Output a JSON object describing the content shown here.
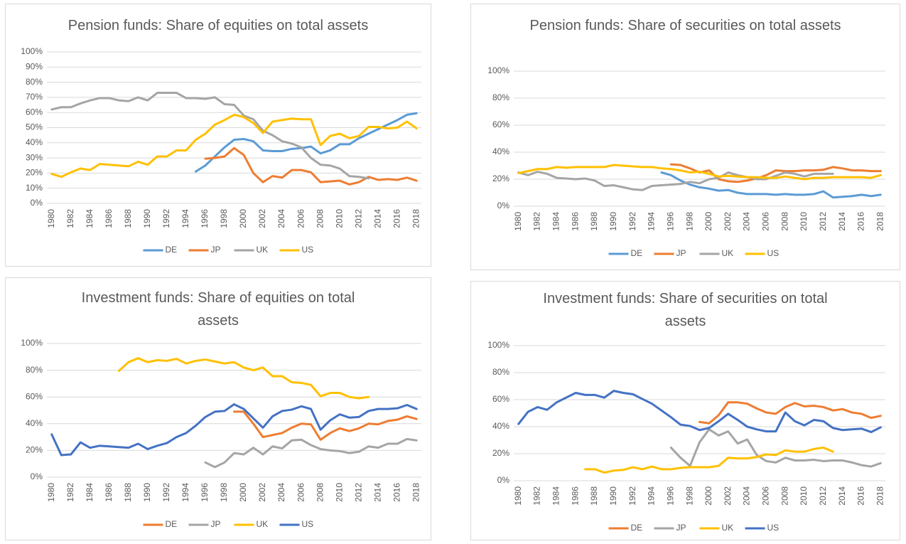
{
  "chart_data": [
    {
      "type": "line",
      "title": "Pension funds: Share of equities on total assets",
      "x": [
        1980,
        1981,
        1982,
        1983,
        1984,
        1985,
        1986,
        1987,
        1988,
        1989,
        1990,
        1991,
        1992,
        1993,
        1994,
        1995,
        1996,
        1997,
        1998,
        1999,
        2000,
        2001,
        2002,
        2003,
        2004,
        2005,
        2006,
        2007,
        2008,
        2009,
        2010,
        2011,
        2012,
        2013,
        2014,
        2015,
        2016,
        2017,
        2018
      ],
      "xlim": [
        1979.5,
        2018.5
      ],
      "xticks": [
        1980,
        1982,
        1984,
        1986,
        1988,
        1990,
        1992,
        1994,
        1996,
        1998,
        2000,
        2002,
        2004,
        2006,
        2008,
        2010,
        2012,
        2014,
        2016,
        2018
      ],
      "ylim": [
        0,
        100
      ],
      "yticks": [
        {
          "value": 0,
          "label": "0%"
        },
        {
          "value": 10,
          "label": "10%"
        },
        {
          "value": 20,
          "label": "20%"
        },
        {
          "value": 30,
          "label": "30%"
        },
        {
          "value": 40,
          "label": "40%"
        },
        {
          "value": 50,
          "label": "50%"
        },
        {
          "value": 60,
          "label": "60%"
        },
        {
          "value": 70,
          "label": "70%"
        },
        {
          "value": 80,
          "label": "80%"
        },
        {
          "value": 90,
          "label": "90%"
        },
        {
          "value": 100,
          "label": "100%"
        }
      ],
      "grid": true,
      "legend": "bottom",
      "series": [
        {
          "name": "DE",
          "color": "#5b9bd5",
          "values": [
            null,
            null,
            null,
            null,
            null,
            null,
            null,
            null,
            null,
            null,
            null,
            null,
            null,
            null,
            null,
            21,
            25,
            31,
            37,
            42,
            42.5,
            41,
            35,
            34.5,
            34.5,
            36,
            36.5,
            37.5,
            33,
            35,
            39,
            39,
            43,
            46,
            49,
            52,
            55,
            58.5,
            59.5
          ]
        },
        {
          "name": "JP",
          "color": "#ed7d31",
          "values": [
            null,
            null,
            null,
            null,
            null,
            null,
            null,
            null,
            null,
            null,
            null,
            null,
            null,
            null,
            null,
            null,
            29.5,
            30,
            31,
            36.5,
            32,
            20,
            14,
            18,
            17,
            22,
            22,
            20.5,
            14,
            14.5,
            15,
            12.5,
            14,
            17.5,
            15.5,
            16,
            15.5,
            17,
            15
          ]
        },
        {
          "name": "UK",
          "color": "#a5a5a5",
          "values": [
            62,
            63.5,
            63.5,
            66,
            68,
            69.5,
            69.5,
            68,
            67.5,
            70,
            68,
            73,
            73,
            73,
            69.5,
            69.5,
            69,
            70,
            65.5,
            65,
            58,
            55.5,
            48,
            45,
            41,
            39.5,
            37,
            30,
            25.5,
            25,
            23,
            18,
            17.5,
            16.5,
            null,
            null,
            null,
            null,
            null
          ]
        },
        {
          "name": "US",
          "color": "#ffc000",
          "values": [
            19.5,
            17.5,
            20.5,
            23,
            22,
            26,
            25.5,
            25,
            24.5,
            27.5,
            25.5,
            31,
            31,
            35,
            35,
            42,
            46,
            52,
            55,
            58.5,
            57,
            53,
            46.5,
            54,
            55,
            56,
            55.5,
            55.5,
            38.5,
            44.5,
            46,
            43,
            44.5,
            50.5,
            50.5,
            49.5,
            50,
            54,
            49.5
          ]
        }
      ]
    },
    {
      "type": "line",
      "title": "Pension funds: Share of securities on total assets",
      "x": [
        1980,
        1981,
        1982,
        1983,
        1984,
        1985,
        1986,
        1987,
        1988,
        1989,
        1990,
        1991,
        1992,
        1993,
        1994,
        1995,
        1996,
        1997,
        1998,
        1999,
        2000,
        2001,
        2002,
        2003,
        2004,
        2005,
        2006,
        2007,
        2008,
        2009,
        2010,
        2011,
        2012,
        2013,
        2014,
        2015,
        2016,
        2017,
        2018
      ],
      "xlim": [
        1979.5,
        2018.5
      ],
      "xticks": [
        1980,
        1982,
        1984,
        1986,
        1988,
        1990,
        1992,
        1994,
        1996,
        1998,
        2000,
        2002,
        2004,
        2006,
        2008,
        2010,
        2012,
        2014,
        2016,
        2018
      ],
      "ylim": [
        0,
        100
      ],
      "yticks": [
        {
          "value": 0,
          "label": "0%"
        },
        {
          "value": 20,
          "label": "20%"
        },
        {
          "value": 40,
          "label": "40%"
        },
        {
          "value": 60,
          "label": "60%"
        },
        {
          "value": 80,
          "label": "80%"
        },
        {
          "value": 100,
          "label": "100%"
        }
      ],
      "grid": true,
      "legend": "bottom",
      "series": [
        {
          "name": "DE",
          "color": "#5b9bd5",
          "values": [
            null,
            null,
            null,
            null,
            null,
            null,
            null,
            null,
            null,
            null,
            null,
            null,
            null,
            null,
            null,
            25,
            23,
            19,
            16,
            14,
            13,
            11.5,
            12,
            10,
            9,
            9,
            9,
            8.5,
            9,
            8.5,
            8.5,
            9,
            11,
            6.5,
            7,
            7.5,
            8.5,
            7.5,
            8.5
          ]
        },
        {
          "name": "JP",
          "color": "#ed7d31",
          "values": [
            null,
            null,
            null,
            null,
            null,
            null,
            null,
            null,
            null,
            null,
            null,
            null,
            null,
            null,
            null,
            null,
            31,
            30.5,
            28,
            25,
            26.5,
            20,
            18.5,
            18,
            19,
            20.5,
            23,
            26.5,
            26,
            26,
            26.5,
            26.5,
            27,
            29,
            28,
            26.5,
            26.5,
            26,
            26
          ]
        },
        {
          "name": "UK",
          "color": "#a5a5a5",
          "values": [
            25,
            23,
            25.5,
            24,
            21,
            20.5,
            20,
            20.5,
            19,
            15,
            15.5,
            14,
            12.5,
            12,
            15,
            15.5,
            16,
            16.5,
            18,
            17,
            20,
            21,
            25,
            23,
            21.5,
            20,
            20,
            22.5,
            25,
            24,
            22,
            24,
            24,
            24,
            null,
            null,
            null,
            null,
            null
          ]
        },
        {
          "name": "US",
          "color": "#ffc000",
          "values": [
            24.5,
            26,
            27.5,
            27.5,
            29,
            28.5,
            29,
            29,
            29,
            29,
            30.5,
            30,
            29.5,
            29,
            29,
            28,
            27.5,
            26.5,
            25,
            25.5,
            24,
            22,
            22.5,
            22,
            21.5,
            21.5,
            21,
            21,
            22,
            21,
            20,
            21,
            21,
            21.5,
            21.5,
            21.5,
            21.5,
            21,
            23
          ]
        }
      ]
    },
    {
      "type": "line",
      "title": "Investment funds: Share of equities on total assets",
      "x": [
        1980,
        1981,
        1982,
        1983,
        1984,
        1985,
        1986,
        1987,
        1988,
        1989,
        1990,
        1991,
        1992,
        1993,
        1994,
        1995,
        1996,
        1997,
        1998,
        1999,
        2000,
        2001,
        2002,
        2003,
        2004,
        2005,
        2006,
        2007,
        2008,
        2009,
        2010,
        2011,
        2012,
        2013,
        2014,
        2015,
        2016,
        2017,
        2018
      ],
      "xlim": [
        1979.5,
        2018.5
      ],
      "xticks": [
        1980,
        1982,
        1984,
        1986,
        1988,
        1990,
        1992,
        1994,
        1996,
        1998,
        2000,
        2002,
        2004,
        2006,
        2008,
        2010,
        2012,
        2014,
        2016,
        2018
      ],
      "ylim": [
        0,
        100
      ],
      "yticks": [
        {
          "value": 0,
          "label": "0%"
        },
        {
          "value": 20,
          "label": "20%"
        },
        {
          "value": 40,
          "label": "40%"
        },
        {
          "value": 60,
          "label": "60%"
        },
        {
          "value": 80,
          "label": "80%"
        },
        {
          "value": 100,
          "label": "100%"
        }
      ],
      "grid": true,
      "legend": "bottom",
      "series": [
        {
          "name": "DE",
          "color": "#ed7d31",
          "values": [
            null,
            null,
            null,
            null,
            null,
            null,
            null,
            null,
            null,
            null,
            null,
            null,
            null,
            null,
            null,
            null,
            null,
            null,
            null,
            49,
            49,
            40,
            30,
            31.5,
            33,
            37,
            40,
            39.5,
            28,
            33,
            36.5,
            34.5,
            36.5,
            40,
            39.5,
            42,
            43,
            45.5,
            43.5
          ]
        },
        {
          "name": "JP",
          "color": "#a5a5a5",
          "values": [
            null,
            null,
            null,
            null,
            null,
            null,
            null,
            null,
            null,
            null,
            null,
            null,
            null,
            null,
            null,
            null,
            11,
            7.5,
            11,
            18,
            17,
            22,
            17,
            23,
            21.5,
            27.5,
            28,
            24,
            21,
            20,
            19.5,
            18,
            19,
            23,
            22,
            25,
            25,
            28.5,
            27.5
          ]
        },
        {
          "name": "UK",
          "color": "#ffc000",
          "values": [
            null,
            null,
            null,
            null,
            null,
            null,
            null,
            79.5,
            86,
            89,
            86,
            87.5,
            87,
            88.5,
            85,
            87,
            88,
            86.5,
            85,
            86,
            82,
            80,
            82,
            75.5,
            75.5,
            71,
            70.5,
            69,
            60.5,
            63,
            63,
            60,
            59,
            60,
            null,
            null,
            null,
            null,
            null
          ]
        },
        {
          "name": "US",
          "color": "#4472c4",
          "values": [
            32,
            16.5,
            17,
            26,
            22,
            23.5,
            23,
            22.5,
            22,
            25,
            21,
            23.5,
            25.5,
            30,
            33,
            38.5,
            45,
            49,
            49.5,
            54.5,
            51,
            44,
            37,
            45.5,
            49.5,
            50.5,
            53,
            51,
            35.5,
            42.5,
            47,
            44.5,
            45,
            49.5,
            51,
            51,
            51.5,
            54,
            51
          ]
        }
      ]
    },
    {
      "type": "line",
      "title": "Investment funds: Share of securities on total assets",
      "x": [
        1980,
        1981,
        1982,
        1983,
        1984,
        1985,
        1986,
        1987,
        1988,
        1989,
        1990,
        1991,
        1992,
        1993,
        1994,
        1995,
        1996,
        1997,
        1998,
        1999,
        2000,
        2001,
        2002,
        2003,
        2004,
        2005,
        2006,
        2007,
        2008,
        2009,
        2010,
        2011,
        2012,
        2013,
        2014,
        2015,
        2016,
        2017,
        2018
      ],
      "xlim": [
        1979.5,
        2018.5
      ],
      "xticks": [
        1980,
        1982,
        1984,
        1986,
        1988,
        1990,
        1992,
        1994,
        1996,
        1998,
        2000,
        2002,
        2004,
        2006,
        2008,
        2010,
        2012,
        2014,
        2016,
        2018
      ],
      "ylim": [
        0,
        100
      ],
      "yticks": [
        {
          "value": 0,
          "label": "0%"
        },
        {
          "value": 20,
          "label": "20%"
        },
        {
          "value": 40,
          "label": "40%"
        },
        {
          "value": 60,
          "label": "60%"
        },
        {
          "value": 80,
          "label": "80%"
        },
        {
          "value": 100,
          "label": "100%"
        }
      ],
      "grid": true,
      "legend": "bottom",
      "series": [
        {
          "name": "DE",
          "color": "#ed7d31",
          "values": [
            null,
            null,
            null,
            null,
            null,
            null,
            null,
            null,
            null,
            null,
            null,
            null,
            null,
            null,
            null,
            null,
            null,
            null,
            null,
            43.5,
            42.5,
            48.5,
            58,
            58,
            57,
            53.5,
            50.5,
            49.5,
            54.5,
            57.5,
            55,
            55.5,
            54.5,
            52,
            53,
            50.5,
            49.5,
            46.5,
            48
          ]
        },
        {
          "name": "JP",
          "color": "#a5a5a5",
          "values": [
            null,
            null,
            null,
            null,
            null,
            null,
            null,
            null,
            null,
            null,
            null,
            null,
            null,
            null,
            null,
            null,
            24.5,
            17,
            11,
            28.5,
            38,
            33.5,
            36.5,
            27.5,
            30.5,
            19,
            14.5,
            13.5,
            17,
            15,
            15,
            15.5,
            14.5,
            15,
            15,
            13.5,
            11.5,
            10.5,
            13
          ]
        },
        {
          "name": "UK",
          "color": "#ffc000",
          "values": [
            null,
            null,
            null,
            null,
            null,
            null,
            null,
            8.5,
            8.5,
            6,
            7.5,
            8,
            10,
            8.5,
            10.5,
            8.5,
            8.5,
            9.5,
            10,
            10,
            10,
            11,
            17,
            16.5,
            16.5,
            17.5,
            19.5,
            19,
            22.5,
            21.5,
            21.5,
            23.5,
            24.5,
            21.5,
            null,
            null,
            null,
            null,
            null
          ]
        },
        {
          "name": "US",
          "color": "#4472c4",
          "values": [
            42,
            51,
            54.5,
            52.5,
            58,
            61.5,
            65,
            63.5,
            63.5,
            61.5,
            66.5,
            65,
            64,
            60.5,
            57,
            52,
            47,
            41.5,
            40.5,
            37.5,
            39,
            44,
            49.5,
            45,
            40,
            38,
            36.5,
            36.5,
            50.5,
            44,
            41,
            45,
            44,
            39,
            37.5,
            38,
            38.5,
            36,
            39.5
          ]
        }
      ]
    }
  ]
}
